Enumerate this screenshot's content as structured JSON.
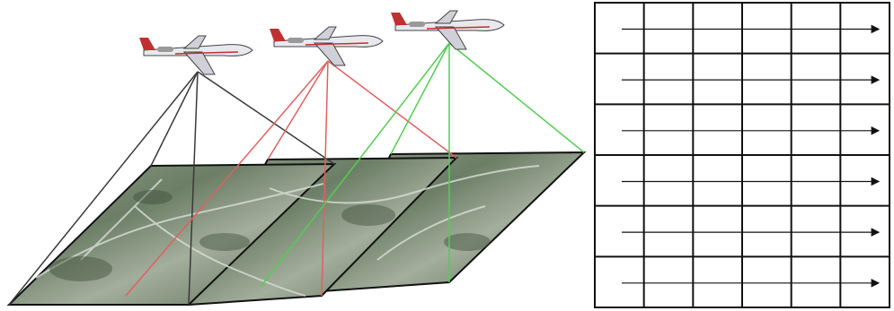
{
  "figure": {
    "aircraft_count": 3,
    "photo_frames": 3,
    "ray_colors": [
      "#3a3a3a",
      "#e06060",
      "#55cc55"
    ],
    "photo_colors": {
      "dark": "#4a5a48",
      "light": "#9aa994",
      "mid": "#6d7f68"
    },
    "flight_grid": {
      "rows": 6,
      "columns": 6,
      "arrow_direction": "right"
    }
  }
}
